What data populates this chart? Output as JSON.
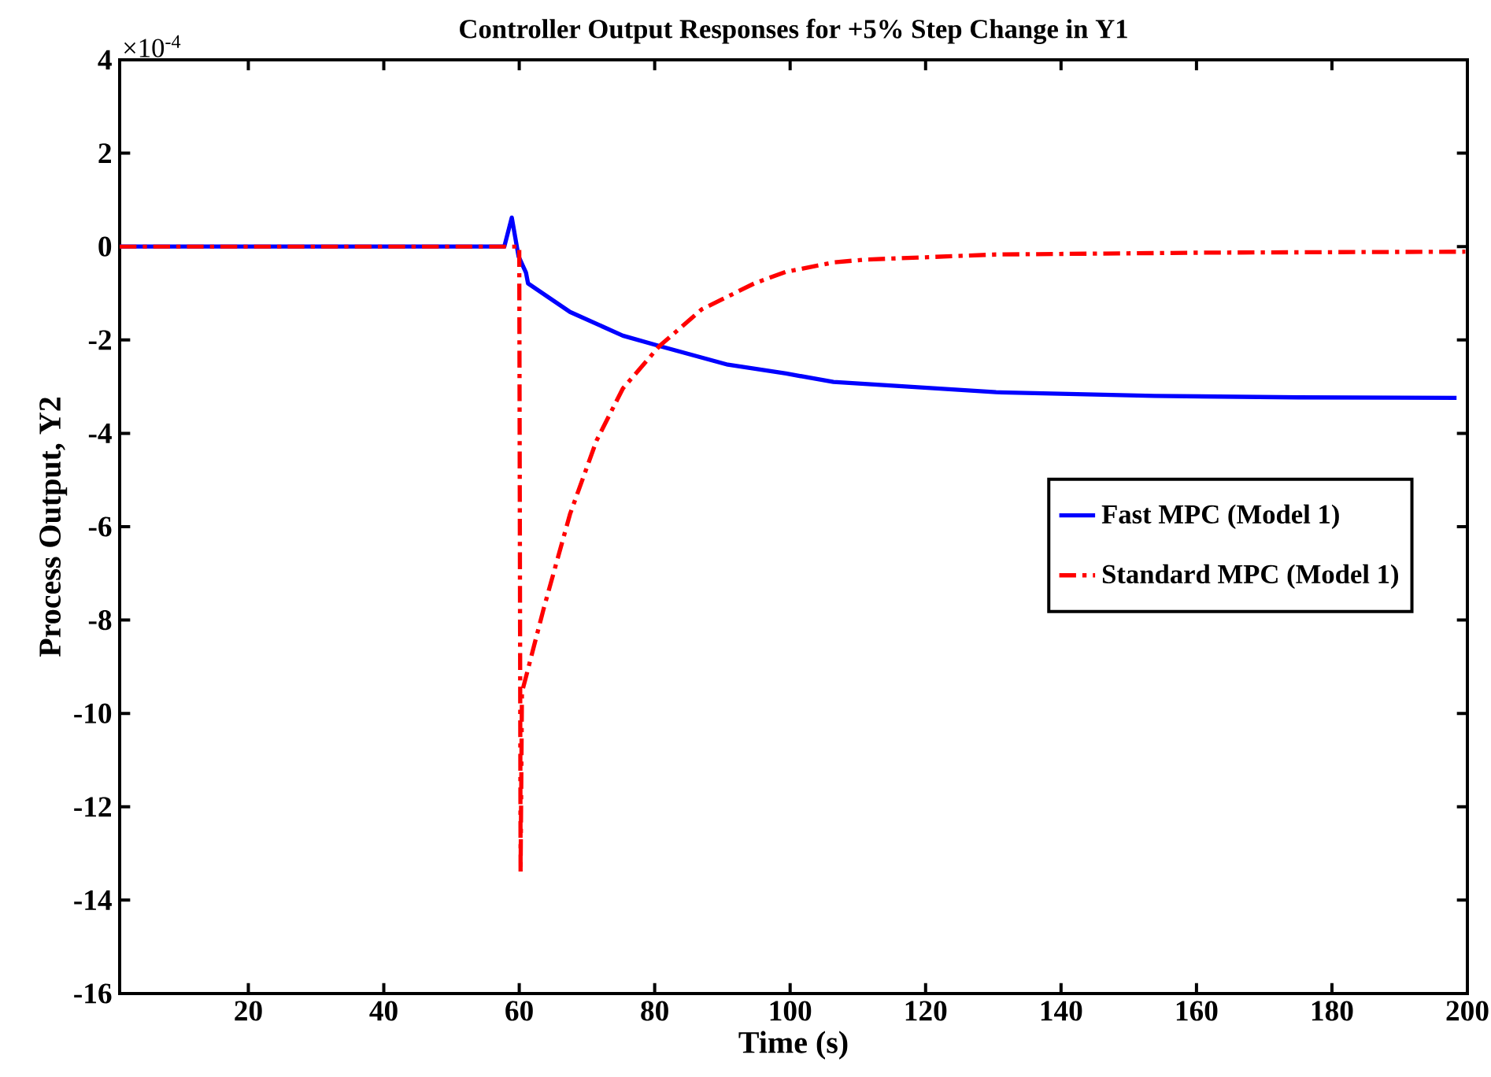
{
  "chart_data": {
    "type": "line",
    "title": "Controller Output Responses for +5% Step Change in Y1",
    "xlabel": "Time (s)",
    "ylabel": "Process Output, Y2",
    "annotations": [
      "×10$^{-4}$"
    ],
    "xlim": [
      1,
      200
    ],
    "xticks": [
      20,
      40,
      60,
      80,
      100,
      120,
      140,
      160,
      180,
      200
    ],
    "ylim": [
      -16,
      4
    ],
    "yticks": [
      -16,
      -14,
      -12,
      -10,
      -8,
      -6,
      -4,
      -2,
      0,
      2,
      4
    ],
    "grid": false,
    "legend": "right",
    "series": [
      {
        "name": "Fast MPC (Model 1)",
        "color": "#0000ff",
        "line_style": "solid",
        "x": [
          1,
          57.8,
          58.9,
          59.9,
          61,
          61.3,
          67.5,
          75.3,
          80.7,
          90.8,
          99.4,
          106.4,
          130.4,
          153.8,
          175,
          198.4
        ],
        "values": [
          0,
          0,
          0.62,
          -0.21,
          -0.56,
          -0.79,
          -1.4,
          -1.91,
          -2.13,
          -2.53,
          -2.72,
          -2.9,
          -3.12,
          -3.2,
          -3.23,
          -3.24
        ]
      },
      {
        "name": "Standard MPC (Model 1)",
        "color": "#ff0000",
        "line_style": "dashdot",
        "x": [
          1,
          60,
          60.2,
          60.4,
          63.6,
          67.5,
          71.4,
          75.3,
          80.7,
          86.9,
          94.7,
          99.4,
          106.4,
          111,
          130.4,
          161.5,
          199.7
        ],
        "values": [
          0,
          0,
          -13.4,
          -9.55,
          -7.76,
          -5.73,
          -4.16,
          -3.04,
          -2.13,
          -1.35,
          -0.79,
          -0.54,
          -0.34,
          -0.28,
          -0.17,
          -0.13,
          -0.11
        ]
      }
    ]
  }
}
